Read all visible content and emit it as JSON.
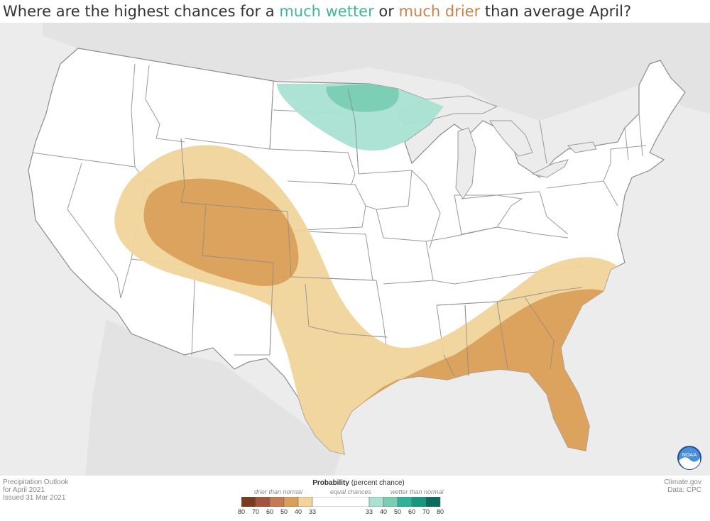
{
  "title": {
    "prefix": "Where are the highest chances for a ",
    "wetter": "much wetter",
    "mid": " or ",
    "drier": "much drier",
    "suffix": " than average April?",
    "wet_color": "#3fb59a",
    "dry_color": "#c7834a"
  },
  "footer": {
    "line1": "Precipitation Outlook",
    "line2": "for April 2021",
    "line3": "Issued 31 Mar 2021",
    "source1": "Climate.gov",
    "source2": "Data: CPC"
  },
  "logo": {
    "text": "NOAA",
    "icon": "noaa-logo-icon"
  },
  "legend": {
    "title_bold": "Probability",
    "title_rest": " (percent chance)",
    "drier_label": "drier than normal",
    "equal_label": "equal chances",
    "wetter_label": "wetter than normal",
    "drier_ticks": [
      "80",
      "70",
      "60",
      "50",
      "40",
      "33"
    ],
    "wetter_ticks": [
      "33",
      "40",
      "50",
      "60",
      "70",
      "80"
    ],
    "drier_colors": [
      "#7b3b1f",
      "#a2553a",
      "#c47a52",
      "#d9a05a",
      "#f0d49a"
    ],
    "wetter_colors": [
      "#a9e2d2",
      "#79cdb3",
      "#2eb39a",
      "#16977f",
      "#0b6c5c"
    ]
  },
  "map": {
    "colors": {
      "ocean_land_outside": "#ececec",
      "land": "#ffffff",
      "border": "#8c8c8c",
      "dry_40": "#f0d49a",
      "dry_50": "#d9a05a",
      "wet_40": "#a9e2d2",
      "wet_50": "#79cdb3"
    }
  }
}
